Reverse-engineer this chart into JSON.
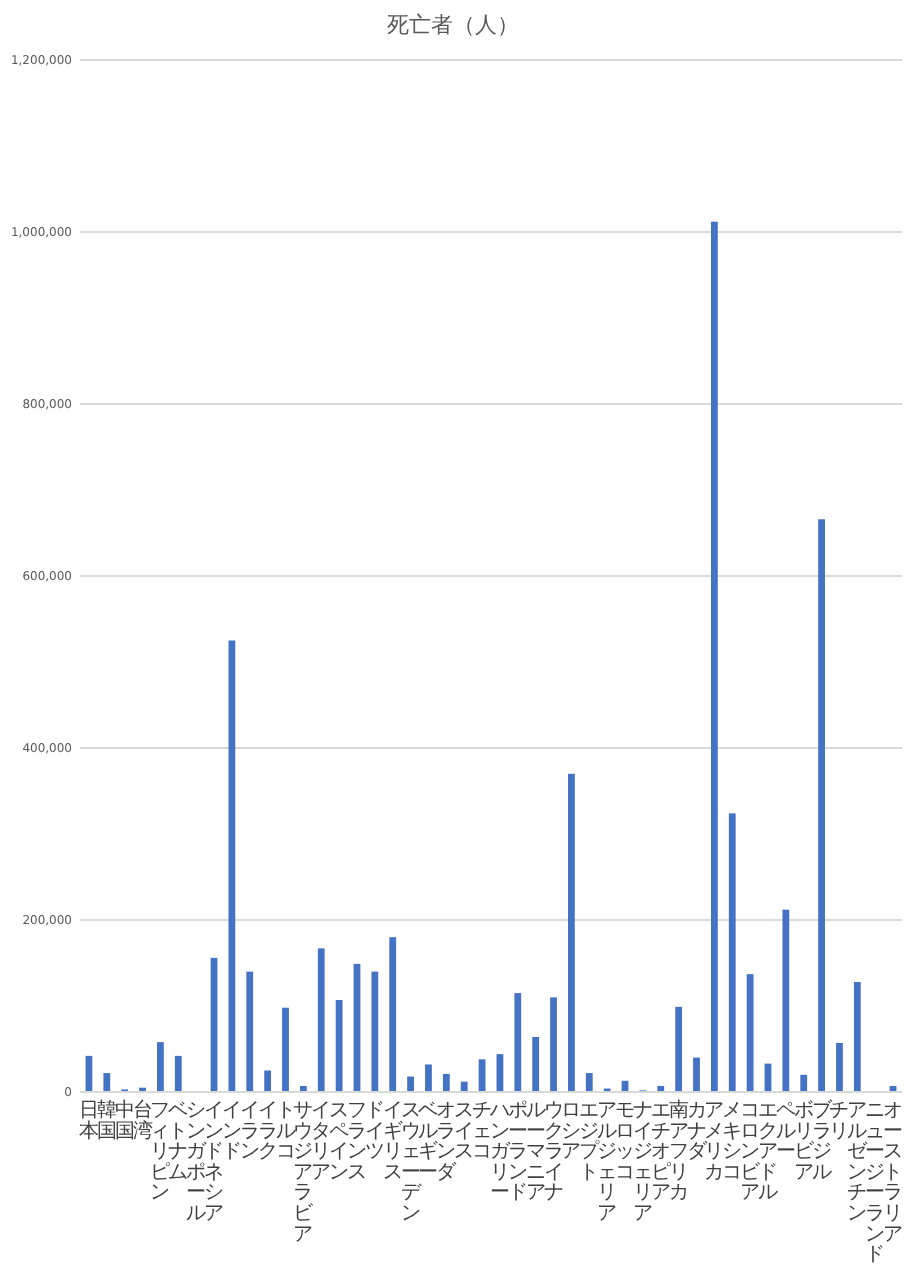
{
  "chart_data": {
    "type": "bar",
    "title": "死亡者（人）",
    "categories": [
      "日本",
      "韓国",
      "中国",
      "台湾",
      "フィリピン",
      "ベトナム",
      "シンガポール",
      "インドネシア",
      "インド",
      "イラン",
      "イラク",
      "トルコ",
      "サウジアラビア",
      "イタリア",
      "スペイン",
      "フランス",
      "ドイツ",
      "イギリス",
      "スウェーデン",
      "ベルギー",
      "オランダ",
      "スイス",
      "チェコ",
      "ハンガリー",
      "ポーランド",
      "ルーマニア",
      "ウクライナ",
      "ロシア",
      "エジプト",
      "アルジェリア",
      "モロッコ",
      "ナイジェリア",
      "エチオピア",
      "南アフリカ",
      "カナダ",
      "アメリカ",
      "メキシコ",
      "コロンビア",
      "エクアドル",
      "ペルー",
      "ボリビア",
      "ブラジル",
      "チリ",
      "アルゼンチン",
      "ニュージーランド",
      "オーストラリア"
    ],
    "values": [
      42000,
      22000,
      3000,
      5000,
      58000,
      42000,
      0,
      156000,
      525000,
      140000,
      25000,
      98000,
      7000,
      167000,
      107000,
      149000,
      140000,
      180000,
      18000,
      32000,
      21000,
      12000,
      38000,
      44000,
      115000,
      64000,
      110000,
      370000,
      22000,
      4000,
      13000,
      2000,
      7000,
      99000,
      40000,
      1012000,
      324000,
      137000,
      33000,
      212000,
      20000,
      666000,
      57000,
      128000,
      0,
      7000
    ],
    "color": "#4472c4",
    "ylim": [
      0,
      1200000
    ],
    "yticks": [
      {
        "value": 0,
        "label": "0"
      },
      {
        "value": 200000,
        "label": "200,000"
      },
      {
        "value": 400000,
        "label": "400,000"
      },
      {
        "value": 600000,
        "label": "600,000"
      },
      {
        "value": 800000,
        "label": "800,000"
      },
      {
        "value": 1000000,
        "label": "1,000,000"
      },
      {
        "value": 1200000,
        "label": "1,200,000"
      }
    ],
    "grid": "y"
  }
}
